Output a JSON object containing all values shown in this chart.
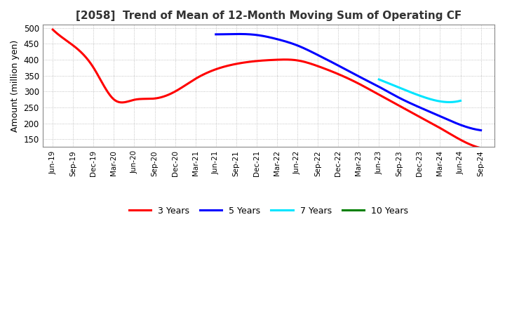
{
  "title": "[2058]  Trend of Mean of 12-Month Moving Sum of Operating CF",
  "ylabel": "Amount (million yen)",
  "ylim": [
    125,
    510
  ],
  "yticks": [
    150,
    200,
    250,
    300,
    350,
    400,
    450,
    500
  ],
  "background_color": "#ffffff",
  "grid_color": "#aaaaaa",
  "series": {
    "3years": {
      "color": "#ff0000",
      "label": "3 Years",
      "x_months": [
        0,
        3,
        6,
        9,
        12,
        15,
        18,
        21,
        24,
        27,
        30,
        33,
        36,
        39,
        42,
        45,
        48,
        51,
        54,
        57,
        60,
        63
      ],
      "y": [
        495,
        445,
        375,
        275,
        274,
        278,
        300,
        340,
        370,
        387,
        396,
        400,
        398,
        380,
        355,
        325,
        290,
        255,
        220,
        185,
        148,
        122
      ]
    },
    "5years": {
      "color": "#0000ff",
      "label": "5 Years",
      "x_months": [
        24,
        27,
        30,
        33,
        36,
        39,
        42,
        45,
        48,
        51,
        54,
        57,
        60,
        63
      ],
      "y": [
        480,
        481,
        478,
        465,
        445,
        415,
        382,
        348,
        315,
        280,
        250,
        222,
        195,
        178
      ]
    },
    "7years": {
      "color": "#00e5ff",
      "label": "7 Years",
      "x_months": [
        48,
        51,
        54,
        57,
        60
      ],
      "y": [
        338,
        312,
        287,
        269,
        271
      ]
    },
    "10years": {
      "color": "#008000",
      "label": "10 Years",
      "x_months": [],
      "y": []
    }
  },
  "xtick_labels": [
    "Jun-19",
    "Sep-19",
    "Dec-19",
    "Mar-20",
    "Jun-20",
    "Sep-20",
    "Dec-20",
    "Mar-21",
    "Jun-21",
    "Sep-21",
    "Dec-21",
    "Mar-22",
    "Jun-22",
    "Sep-22",
    "Dec-22",
    "Mar-23",
    "Jun-23",
    "Sep-23",
    "Dec-23",
    "Mar-24",
    "Jun-24",
    "Sep-24"
  ],
  "xtick_positions": [
    0,
    3,
    6,
    9,
    12,
    15,
    18,
    21,
    24,
    27,
    30,
    33,
    36,
    39,
    42,
    45,
    48,
    51,
    54,
    57,
    60,
    63
  ],
  "linewidth": 2.2,
  "title_color": "#333333"
}
